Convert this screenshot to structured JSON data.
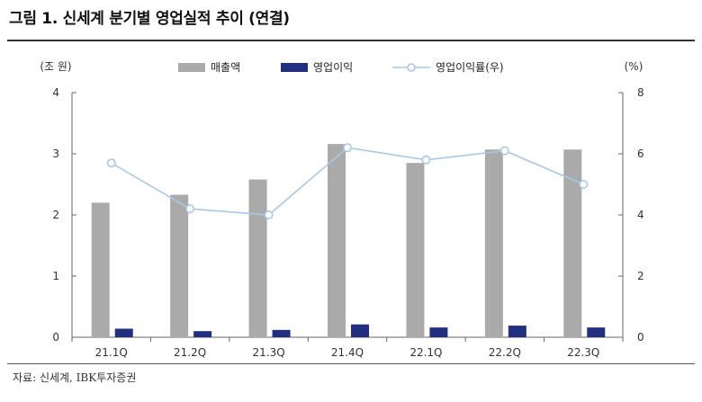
{
  "header": {
    "title": "그림 1. 신세계 분기별 영업실적 추이 (연결)"
  },
  "footer": {
    "source": "자료: 신세계, IBK투자증권"
  },
  "colors": {
    "revenue": "#aaaaaa",
    "op_income": "#22307f",
    "op_margin_line": "#a9c8e8",
    "axis": "#666666"
  },
  "chart_data": {
    "type": "bar",
    "categories": [
      "21.1Q",
      "21.2Q",
      "21.3Q",
      "21.4Q",
      "22.1Q",
      "22.2Q",
      "22.3Q"
    ],
    "y_left": {
      "unit_label": "(조 원)",
      "ylim": [
        0,
        4
      ],
      "ticks": [
        "0",
        "1",
        "2",
        "3",
        "4"
      ]
    },
    "y_right": {
      "unit_label": "(%)",
      "ylim": [
        0,
        8
      ],
      "ticks": [
        "0",
        "2",
        "4",
        "6",
        "8"
      ]
    },
    "series": [
      {
        "name": "매출액",
        "type": "bar",
        "axis": "left",
        "values": [
          2.2,
          2.33,
          2.58,
          3.16,
          2.85,
          3.07,
          3.07
        ]
      },
      {
        "name": "영업이익",
        "type": "bar",
        "axis": "left",
        "values": [
          0.14,
          0.1,
          0.12,
          0.21,
          0.16,
          0.19,
          0.16
        ]
      },
      {
        "name": "영업이익률(우)",
        "type": "line",
        "axis": "right",
        "values": [
          5.7,
          4.2,
          4.0,
          6.2,
          5.8,
          6.1,
          5.0
        ]
      }
    ],
    "legend_position": "top-center",
    "grid": false
  }
}
